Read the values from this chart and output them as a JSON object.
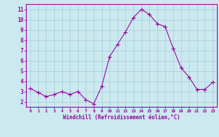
{
  "x": [
    0,
    1,
    2,
    3,
    4,
    5,
    6,
    7,
    8,
    9,
    10,
    11,
    12,
    13,
    14,
    15,
    16,
    17,
    18,
    19,
    20,
    21,
    22,
    23
  ],
  "y": [
    3.3,
    2.9,
    2.5,
    2.7,
    3.0,
    2.7,
    3.0,
    2.2,
    1.8,
    3.5,
    6.4,
    7.6,
    8.8,
    10.2,
    11.0,
    10.5,
    9.6,
    9.3,
    7.2,
    5.3,
    4.4,
    3.2,
    3.2,
    3.9
  ],
  "line_color": "#990099",
  "marker": "+",
  "marker_size": 4,
  "bg_color": "#cce9f0",
  "grid_color": "#aad4de",
  "xlabel": "Windchill (Refroidissement éolien,°C)",
  "xlabel_color": "#990099",
  "tick_color": "#990099",
  "ylabel_ticks": [
    2,
    3,
    4,
    5,
    6,
    7,
    8,
    9,
    10,
    11
  ],
  "xlim": [
    -0.5,
    23.5
  ],
  "ylim": [
    1.5,
    11.5
  ],
  "xticks": [
    0,
    1,
    2,
    3,
    4,
    5,
    6,
    7,
    8,
    9,
    10,
    11,
    12,
    13,
    14,
    15,
    16,
    17,
    18,
    19,
    20,
    21,
    22,
    23
  ]
}
